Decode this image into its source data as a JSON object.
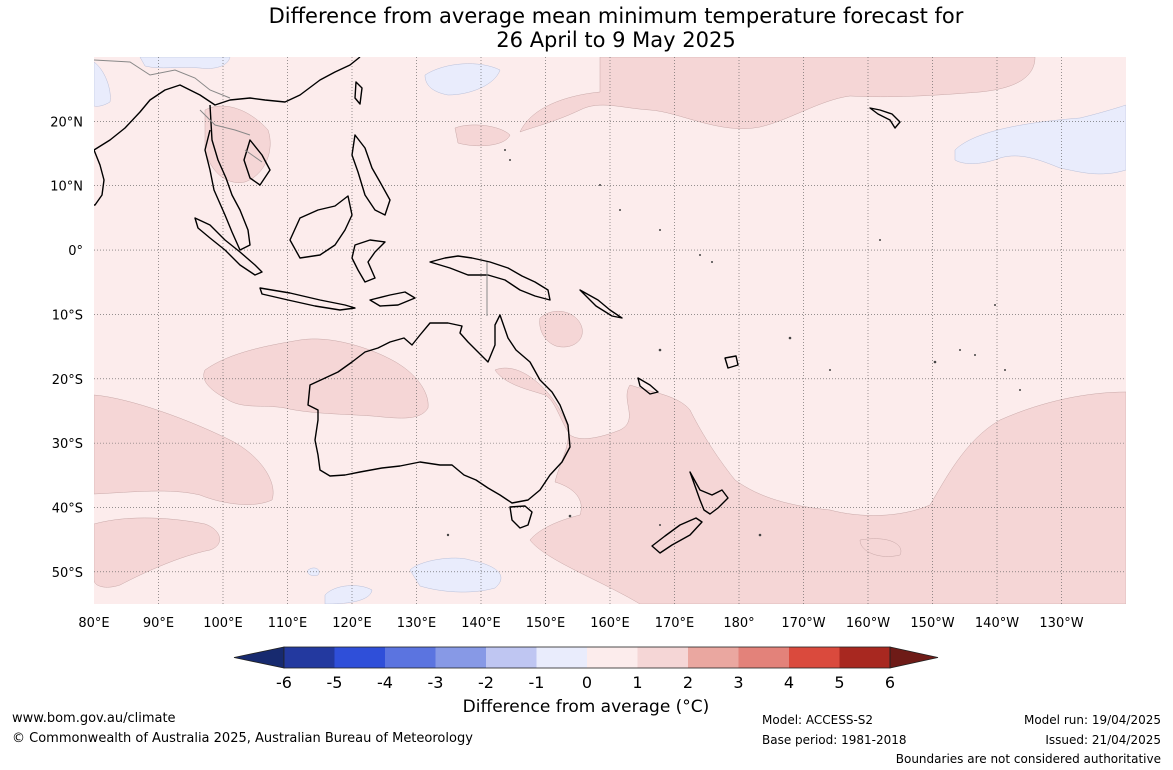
{
  "title": {
    "line1": "Difference from average mean minimum temperature forecast for",
    "line2": "26 April to 9 May 2025"
  },
  "map": {
    "projection": "plate carree",
    "lon_range": [
      80,
      240
    ],
    "lat_range": [
      -55,
      30
    ],
    "grid": "dotted",
    "lon_ticks": [
      "80°E",
      "90°E",
      "100°E",
      "110°E",
      "120°E",
      "130°E",
      "140°E",
      "150°E",
      "160°E",
      "170°E",
      "180°",
      "170°W",
      "160°W",
      "150°W",
      "140°W",
      "130°W"
    ],
    "lat_ticks": [
      "20°N",
      "10°N",
      "0°",
      "10°S",
      "20°S",
      "30°S",
      "40°S",
      "50°S"
    ],
    "background_category": "0 to 1",
    "regions_1_to_2": [
      "western tropical North Pacific",
      "Coral Sea and Tasman Sea",
      "New Zealand region",
      "southeast Pacific",
      "western Australia",
      "southern Indian Ocean",
      "Indochina"
    ],
    "regions_minus1_to_0": [
      "northeast Pacific near 140°W 15°N",
      "south of Australia near 130°E 50°S",
      "South China Sea coast"
    ],
    "land_outline": "Australia, New Zealand, Maritime Continent, Indochina, Philippines, Pacific islands"
  },
  "colorbar": {
    "ticks": [
      "-6",
      "-5",
      "-4",
      "-3",
      "-2",
      "-1",
      "0",
      "1",
      "2",
      "3",
      "4",
      "5",
      "6"
    ],
    "colors": [
      "#23399f",
      "#2f4fd9",
      "#5b74e0",
      "#8799e6",
      "#bfc6f2",
      "#e9ecfc",
      "#fcecec",
      "#f5d6d6",
      "#eaa7a0",
      "#e3827a",
      "#da4a3d",
      "#a82820"
    ],
    "low_extend_color": "#172a6f",
    "high_extend_color": "#6e1b17",
    "title": "Difference from average (°C)"
  },
  "footer": {
    "website": "www.bom.gov.au/climate",
    "copyright": "© Commonwealth of Australia 2025, Australian Bureau of Meteorology",
    "model": "Model: ACCESS-S2",
    "base_period": "Base period: 1981-2018",
    "model_run": "Model run: 19/04/2025",
    "issued": "Issued: 21/04/2025",
    "disclaimer": "Boundaries are not considered authoritative"
  }
}
